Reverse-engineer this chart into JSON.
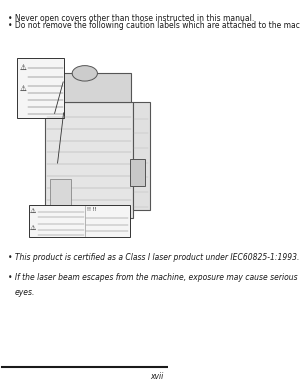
{
  "bg_color": "#f0f0f0",
  "page_bg": "#ffffff",
  "text_color": "#1a1a1a",
  "bullet": "•",
  "line1": "Never open covers other than those instructed in this manual.",
  "line2": "Do not remove the following caution labels which are attached to the machine.",
  "bottom_line1": "This product is certified as a Class I laser product under IEC60825-1:1993.",
  "bottom_line2": "If the laser beam escapes from the machine, exposure may cause serious damage to your",
  "bottom_line3": "eyes.",
  "page_num": "xvii",
  "footer_line_color": "#1a1a1a"
}
